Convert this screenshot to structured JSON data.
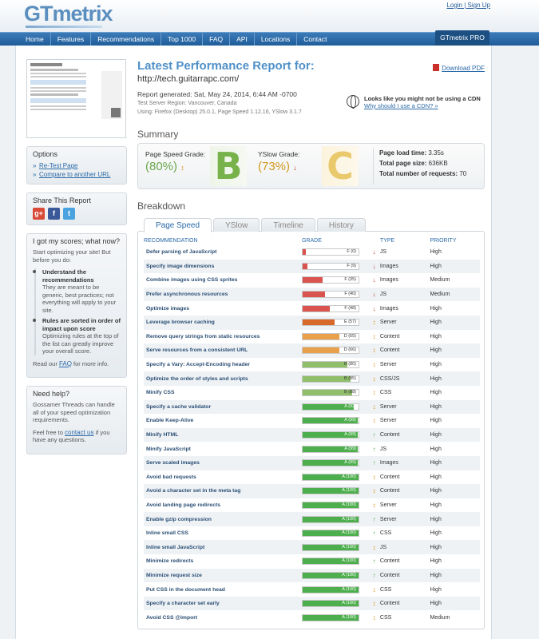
{
  "header": {
    "logo": "GTmetrix",
    "login_label": "Login",
    "signup_label": "Sign Up",
    "sep": " | "
  },
  "nav": {
    "items": [
      "Home",
      "Features",
      "Recommendations",
      "Top 1000",
      "FAQ",
      "API",
      "Locations",
      "Contact"
    ],
    "pro_label": "GTmetrix PRO"
  },
  "report": {
    "title": "Latest Performance Report for:",
    "url": "http://tech.guitarrapc.com/",
    "download_pdf": "Download PDF",
    "generated": "Report generated: Sat, May 24, 2014, 6:44 AM -0700",
    "server_region": "Test Server Region: Vancouver, Canada",
    "using": "Using: Firefox (Desktop) 25.0.1, Page Speed 1.12.16, YSlow 3.1.7",
    "cdn_line1": "Looks like you might not be using a CDN",
    "cdn_line2": "Why should I use a CDN? »"
  },
  "summary": {
    "heading": "Summary",
    "pagespeed_label": "Page Speed Grade:",
    "pagespeed_score": "(80%)",
    "pagespeed_letter": "B",
    "yslow_label": "YSlow Grade:",
    "yslow_score": "(73%)",
    "yslow_letter": "C",
    "load_time_label": "Page load time:",
    "load_time_value": "3.35s",
    "page_size_label": "Total page size:",
    "page_size_value": "636KB",
    "requests_label": "Total number of requests:",
    "requests_value": "70"
  },
  "breakdown": {
    "heading": "Breakdown",
    "tabs": [
      "Page Speed",
      "YSlow",
      "Timeline",
      "History"
    ],
    "columns": [
      "RECOMMENDATION",
      "GRADE",
      "TYPE",
      "PRIORITY"
    ],
    "rows": [
      {
        "rec": "Defer parsing of JavaScript",
        "grade": "F (0)",
        "score": 0,
        "dir": "down",
        "type": "JS",
        "priority": "High"
      },
      {
        "rec": "Specify image dimensions",
        "grade": "F (9)",
        "score": 9,
        "dir": "down",
        "type": "Images",
        "priority": "High"
      },
      {
        "rec": "Combine images using CSS sprites",
        "grade": "F (35)",
        "score": 35,
        "dir": "down",
        "type": "Images",
        "priority": "Medium"
      },
      {
        "rec": "Prefer asynchronous resources",
        "grade": "F (40)",
        "score": 40,
        "dir": "down",
        "type": "JS",
        "priority": "Medium"
      },
      {
        "rec": "Optimize images",
        "grade": "F (48)",
        "score": 48,
        "dir": "down",
        "type": "Images",
        "priority": "High"
      },
      {
        "rec": "Leverage browser caching",
        "grade": "E (57)",
        "score": 57,
        "dir": "both",
        "type": "Server",
        "priority": "High"
      },
      {
        "rec": "Remove query strings from static resources",
        "grade": "D (65)",
        "score": 65,
        "dir": "both",
        "type": "Content",
        "priority": "High"
      },
      {
        "rec": "Serve resources from a consistent URL",
        "grade": "D (66)",
        "score": 66,
        "dir": "both",
        "type": "Content",
        "priority": "High"
      },
      {
        "rec": "Specify a Vary: Accept-Encoding header",
        "grade": "B (80)",
        "score": 80,
        "dir": "both",
        "type": "Server",
        "priority": "High"
      },
      {
        "rec": "Optimize the order of styles and scripts",
        "grade": "B (85)",
        "score": 85,
        "dir": "both",
        "type": "CSS/JS",
        "priority": "High"
      },
      {
        "rec": "Minify CSS",
        "grade": "B (88)",
        "score": 88,
        "dir": "both",
        "type": "CSS",
        "priority": "High"
      },
      {
        "rec": "Specify a cache validator",
        "grade": "A (92)",
        "score": 92,
        "dir": "both",
        "type": "Server",
        "priority": "High"
      },
      {
        "rec": "Enable Keep-Alive",
        "grade": "A (99)",
        "score": 99,
        "dir": "both",
        "type": "Server",
        "priority": "High"
      },
      {
        "rec": "Minify HTML",
        "grade": "A (99)",
        "score": 99,
        "dir": "up",
        "type": "Content",
        "priority": "High"
      },
      {
        "rec": "Minify JavaScript",
        "grade": "A (99)",
        "score": 99,
        "dir": "up",
        "type": "JS",
        "priority": "High"
      },
      {
        "rec": "Serve scaled images",
        "grade": "A (99)",
        "score": 99,
        "dir": "up",
        "type": "Images",
        "priority": "High"
      },
      {
        "rec": "Avoid bad requests",
        "grade": "A (100)",
        "score": 100,
        "dir": "both",
        "type": "Content",
        "priority": "High"
      },
      {
        "rec": "Avoid a character set in the meta tag",
        "grade": "A (100)",
        "score": 100,
        "dir": "both",
        "type": "Content",
        "priority": "High"
      },
      {
        "rec": "Avoid landing page redirects",
        "grade": "A (100)",
        "score": 100,
        "dir": "both",
        "type": "Server",
        "priority": "High"
      },
      {
        "rec": "Enable gzip compression",
        "grade": "A (100)",
        "score": 100,
        "dir": "up",
        "type": "Server",
        "priority": "High"
      },
      {
        "rec": "Inline small CSS",
        "grade": "A (100)",
        "score": 100,
        "dir": "up",
        "type": "CSS",
        "priority": "High"
      },
      {
        "rec": "Inline small JavaScript",
        "grade": "A (100)",
        "score": 100,
        "dir": "both",
        "type": "JS",
        "priority": "High"
      },
      {
        "rec": "Minimize redirects",
        "grade": "A (100)",
        "score": 100,
        "dir": "up",
        "type": "Content",
        "priority": "High"
      },
      {
        "rec": "Minimize request size",
        "grade": "A (100)",
        "score": 100,
        "dir": "up",
        "type": "Content",
        "priority": "High"
      },
      {
        "rec": "Put CSS in the document head",
        "grade": "A (100)",
        "score": 100,
        "dir": "both",
        "type": "CSS",
        "priority": "High"
      },
      {
        "rec": "Specify a character set early",
        "grade": "A (100)",
        "score": 100,
        "dir": "both",
        "type": "Content",
        "priority": "High"
      },
      {
        "rec": "Avoid CSS @import",
        "grade": "A (100)",
        "score": 100,
        "dir": "both",
        "type": "CSS",
        "priority": "Medium"
      }
    ]
  },
  "sidebar": {
    "thumb_title": "tech.guitarrapc.com",
    "options_heading": "Options",
    "retest_label": "Re-Test Page",
    "compare_label": "Compare to another URL",
    "share_heading": "Share This Report",
    "share_icons": [
      "google-plus-icon",
      "facebook-icon",
      "twitter-icon"
    ],
    "scores_heading": "I got my scores; what now?",
    "scores_intro": "Start optimizing your site! But before you do:",
    "step1_title": "Understand the recommendations",
    "step1_text": "They are meant to be generic, best practices; not everything will apply to your site.",
    "step2_title": "Rules are sorted in order of impact upon score",
    "step2_text": "Optimizing rules at the top of the list can greatly improve your overall score.",
    "faq_pre": "Read our ",
    "faq_link": "FAQ",
    "faq_post": " for more info.",
    "help_heading": "Need help?",
    "help_text": "Gossamer Threads can handle all of your speed optimization requirements.",
    "help_pre": "Feel free to ",
    "help_link": "contact us",
    "help_post": " if you have any questions."
  },
  "colors": {
    "F": "#d9534f",
    "E": "#d9682b",
    "D": "#e8a14a",
    "B": "#8fbf6a",
    "A": "#4cae4c",
    "up": "#4cae4c",
    "down": "#c0392b",
    "both": "#e08e0b"
  }
}
